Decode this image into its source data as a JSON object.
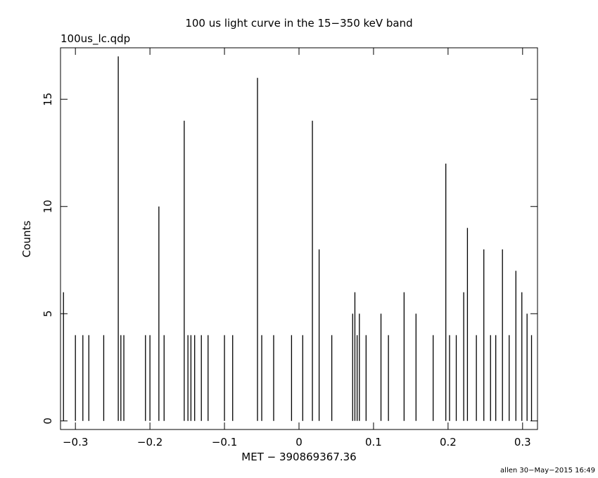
{
  "chart_data": {
    "type": "spike",
    "title": "100 us light curve in the 15−350 keV band",
    "subtitle": "100us_lc.qdp",
    "x_label": "MET − 390869367.36",
    "y_label": "Counts",
    "footer": "allen 30−May−2015 16:49",
    "color": "#000000",
    "xlim": [
      -0.32,
      0.32
    ],
    "ylim": [
      -0.4,
      17.4
    ],
    "xticks": [
      {
        "value": -0.3,
        "label": "−0.3"
      },
      {
        "value": -0.2,
        "label": "−0.2"
      },
      {
        "value": -0.1,
        "label": "−0.1"
      },
      0,
      0.1,
      0.2,
      0.3
    ],
    "yticks": [
      0,
      5,
      10,
      15
    ],
    "x": [
      -0.316,
      -0.3,
      -0.29,
      -0.282,
      -0.262,
      -0.2425,
      -0.239,
      -0.235,
      -0.206,
      -0.2,
      -0.188,
      -0.181,
      -0.154,
      -0.149,
      -0.145,
      -0.14,
      -0.131,
      -0.122,
      -0.1,
      -0.089,
      -0.0557,
      -0.05,
      -0.034,
      -0.01,
      0.005,
      0.018,
      0.027,
      0.044,
      0.072,
      0.075,
      0.078,
      0.081,
      0.09,
      0.11,
      0.12,
      0.141,
      0.157,
      0.18,
      0.197,
      0.202,
      0.211,
      0.221,
      0.226,
      0.238,
      0.248,
      0.257,
      0.264,
      0.273,
      0.282,
      0.291,
      0.299,
      0.306,
      0.312
    ],
    "values": [
      6,
      4,
      4,
      4,
      4,
      17,
      4,
      4,
      4,
      4,
      10,
      4,
      14,
      4,
      4,
      4,
      4,
      4,
      4,
      4,
      16,
      4,
      4,
      4,
      4,
      14,
      8,
      4,
      5,
      6,
      4,
      5,
      4,
      5,
      4,
      6,
      5,
      4,
      12,
      4,
      4,
      6,
      9,
      4,
      8,
      4,
      4,
      8,
      4,
      7,
      6,
      5,
      4
    ]
  }
}
